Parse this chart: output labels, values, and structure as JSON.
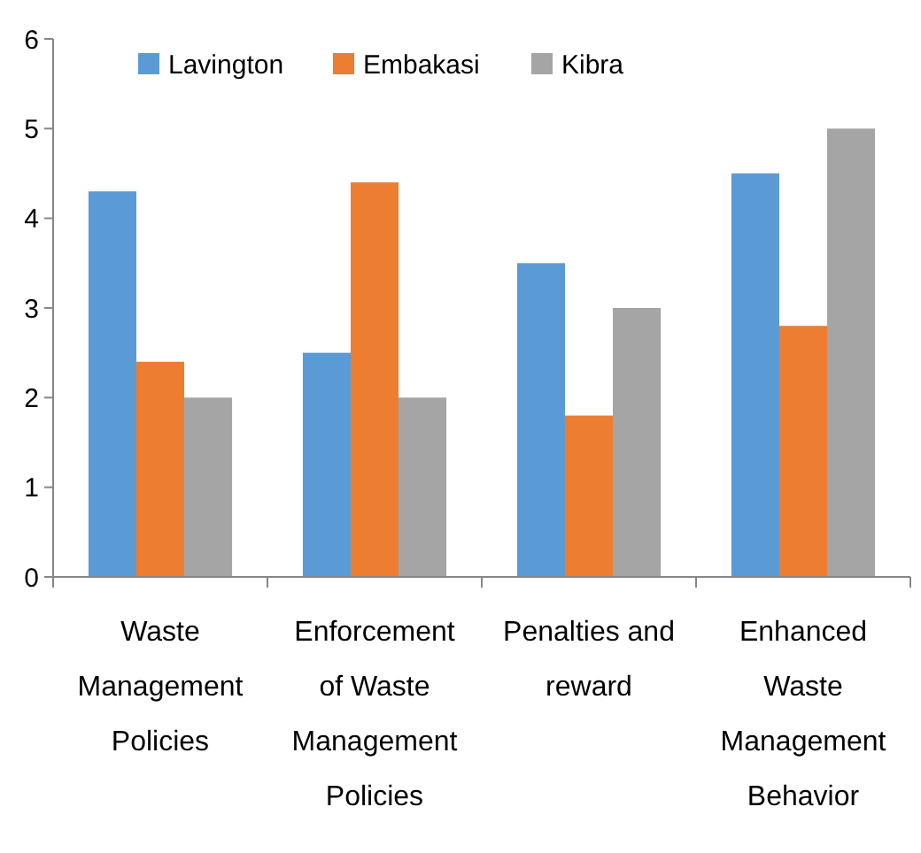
{
  "chart_data": {
    "type": "bar",
    "categories": [
      "Waste Management Policies",
      "Enforcement of Waste Management Policies",
      "Penalties and reward",
      "Enhanced Waste Management Behavior"
    ],
    "series": [
      {
        "name": "Lavington",
        "color": "#5b9bd5",
        "values": [
          4.3,
          2.5,
          3.5,
          4.5
        ]
      },
      {
        "name": "Embakasi",
        "color": "#ed7d31",
        "values": [
          2.4,
          4.4,
          1.8,
          2.8
        ]
      },
      {
        "name": "Kibra",
        "color": "#a5a5a5",
        "values": [
          2,
          2,
          3,
          5
        ]
      }
    ],
    "ylim": [
      0,
      6
    ],
    "yticks": [
      0,
      1,
      2,
      3,
      4,
      5,
      6
    ],
    "legend": "top left"
  }
}
